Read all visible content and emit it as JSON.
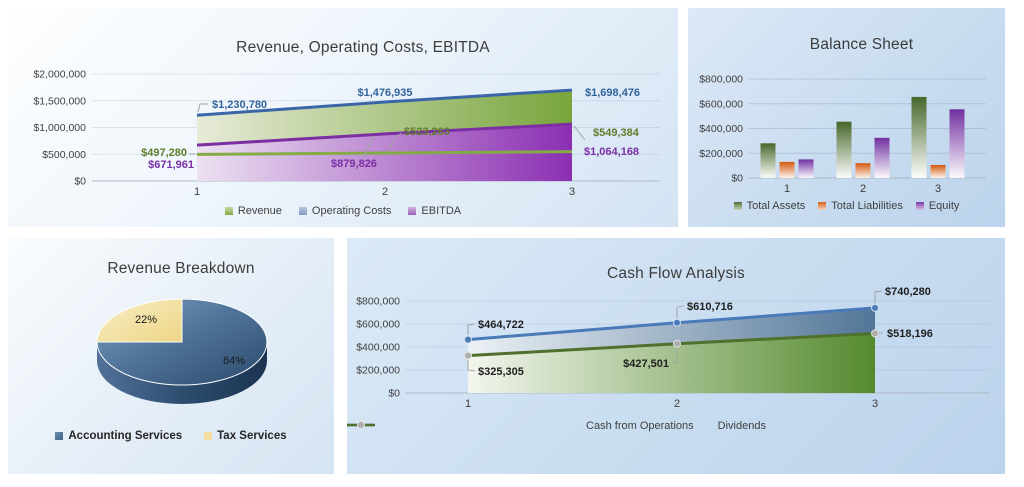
{
  "dashboard": {
    "background": "#ffffff",
    "panel_tint": "#cadef1"
  },
  "chart_data": [
    {
      "id": "revenue_costs_ebitda",
      "type": "area",
      "title": "Revenue, Operating Costs, EBITDA",
      "categories": [
        "1",
        "2",
        "3"
      ],
      "series": [
        {
          "name": "Revenue",
          "color": "#85ab47",
          "label_color": "#5f7d2b",
          "values": [
            497280,
            523263,
            549384
          ],
          "labels": [
            "$497,280",
            "$523,263",
            "$549,384"
          ]
        },
        {
          "name": "Operating Costs",
          "color": "#3a66a8",
          "label_color": "#31639b",
          "values": [
            1230780,
            1476935,
            1698476
          ],
          "labels": [
            "$1,230,780",
            "$1,476,935",
            "$1,698,476"
          ]
        },
        {
          "name": "EBITDA",
          "color": "#7b2fa3",
          "label_color": "#7a2fa5",
          "values": [
            671961,
            879826,
            1064168
          ],
          "labels": [
            "$671,961",
            "$879,826",
            "$1,064,168"
          ]
        }
      ],
      "ylim": [
        0,
        2000000
      ],
      "yticks": [
        0,
        500000,
        1000000,
        1500000,
        2000000
      ],
      "ytick_labels": [
        "$0",
        "$500,000",
        "$1,000,000",
        "$1,500,000",
        "$2,000,000"
      ],
      "grid": "faint",
      "legend_position": "bottom"
    },
    {
      "id": "balance_sheet",
      "type": "bar",
      "title": "Balance Sheet",
      "categories": [
        "1",
        "2",
        "3"
      ],
      "series": [
        {
          "name": "Total Assets",
          "color": "#4f6f34",
          "values": [
            280000,
            455000,
            655000
          ]
        },
        {
          "name": "Total Liabilities",
          "color": "#d4611b",
          "values": [
            130000,
            120000,
            105000
          ]
        },
        {
          "name": "Equity",
          "color": "#7a35a8",
          "values": [
            150000,
            325000,
            555000
          ]
        }
      ],
      "ylim": [
        0,
        800000
      ],
      "yticks": [
        0,
        200000,
        400000,
        600000,
        800000
      ],
      "ytick_labels": [
        "$0",
        "$200,000",
        "$400,000",
        "$600,000",
        "$800,000"
      ],
      "grid": "on",
      "legend_position": "bottom"
    },
    {
      "id": "revenue_breakdown",
      "type": "pie",
      "title": "Revenue Breakdown",
      "style": "3d",
      "slices": [
        {
          "label": "Accounting Services",
          "pct_label": "64%",
          "color": "#3f6488",
          "visual_fraction": 0.75
        },
        {
          "label": "Tax Services",
          "pct_label": "22%",
          "color": "#f3e0a2",
          "visual_fraction": 0.25
        }
      ],
      "legend_position": "bottom"
    },
    {
      "id": "cash_flow",
      "type": "line",
      "title": "Cash Flow Analysis",
      "categories": [
        "1",
        "2",
        "3"
      ],
      "series": [
        {
          "name": "Cash from Operations",
          "color": "#4a7ab8",
          "marker_color": "#4a7ab8",
          "values": [
            464722,
            610716,
            740280
          ],
          "labels": [
            "$464,722",
            "$610,716",
            "$740,280"
          ]
        },
        {
          "name": "Dividends",
          "color": "#50702e",
          "marker_color": "#adadad",
          "values": [
            325305,
            427501,
            518196
          ],
          "labels": [
            "$325,305",
            "$427,501",
            "$518,196"
          ]
        }
      ],
      "ylim": [
        0,
        800000
      ],
      "yticks": [
        0,
        200000,
        400000,
        600000,
        800000
      ],
      "ytick_labels": [
        "$0",
        "$200,000",
        "$400,000",
        "$600,000",
        "$800,000"
      ],
      "grid": "faint",
      "legend_position": "bottom"
    }
  ]
}
